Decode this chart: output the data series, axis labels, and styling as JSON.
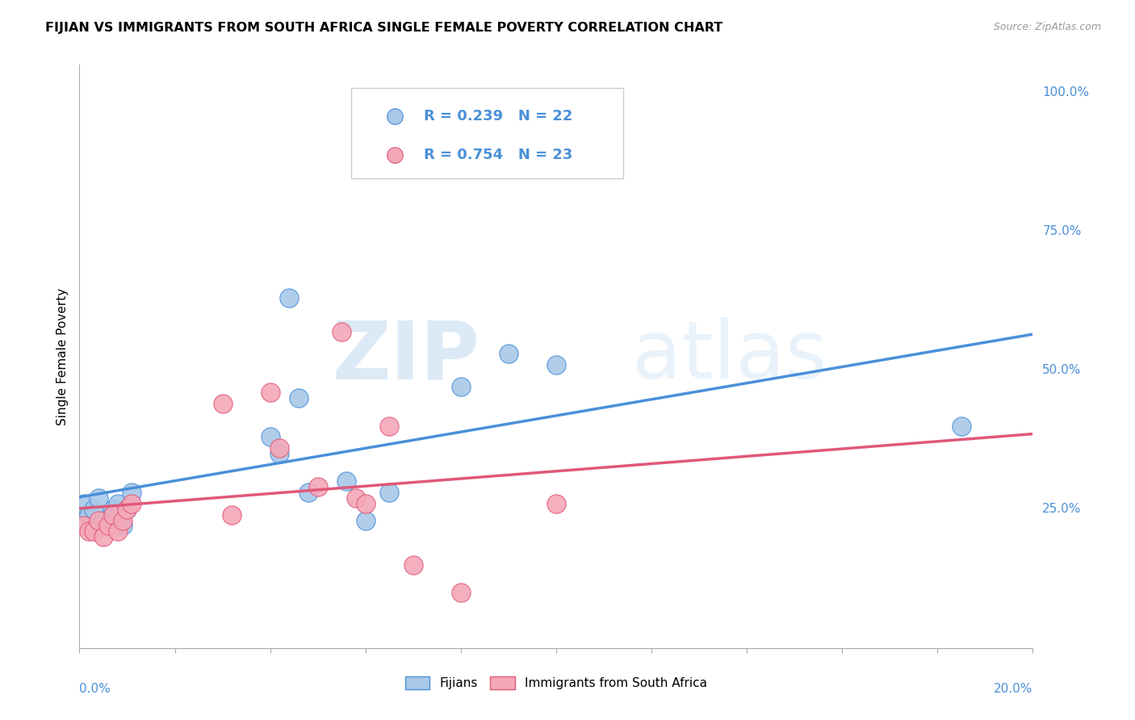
{
  "title": "FIJIAN VS IMMIGRANTS FROM SOUTH AFRICA SINGLE FEMALE POVERTY CORRELATION CHART",
  "source": "Source: ZipAtlas.com",
  "ylabel": "Single Female Poverty",
  "r_fijian": 0.239,
  "n_fijian": 22,
  "r_sa": 0.754,
  "n_sa": 23,
  "fijian_color": "#a8c8e8",
  "sa_color": "#f4a8b8",
  "fijian_line_color": "#4a90d9",
  "sa_line_color": "#e05878",
  "watermark_zip": "ZIP",
  "watermark_atlas": "atlas",
  "fijian_x": [
    0.001,
    0.002,
    0.003,
    0.004,
    0.005,
    0.007,
    0.008,
    0.009,
    0.01,
    0.011,
    0.04,
    0.042,
    0.044,
    0.046,
    0.048,
    0.056,
    0.06,
    0.065,
    0.08,
    0.09,
    0.1,
    0.185
  ],
  "fijian_y": [
    0.26,
    0.24,
    0.25,
    0.27,
    0.23,
    0.25,
    0.26,
    0.22,
    0.25,
    0.28,
    0.38,
    0.35,
    0.63,
    0.45,
    0.28,
    0.3,
    0.23,
    0.28,
    0.47,
    0.53,
    0.51,
    0.4
  ],
  "sa_x": [
    0.001,
    0.002,
    0.003,
    0.004,
    0.005,
    0.006,
    0.007,
    0.008,
    0.009,
    0.01,
    0.011,
    0.03,
    0.032,
    0.04,
    0.042,
    0.05,
    0.055,
    0.058,
    0.06,
    0.065,
    0.07,
    0.08,
    0.1
  ],
  "sa_y": [
    0.22,
    0.21,
    0.21,
    0.23,
    0.2,
    0.22,
    0.24,
    0.21,
    0.23,
    0.25,
    0.26,
    0.44,
    0.24,
    0.46,
    0.36,
    0.29,
    0.57,
    0.27,
    0.26,
    0.4,
    0.15,
    0.1,
    0.26
  ],
  "xlim": [
    0.0,
    0.2
  ],
  "ylim": [
    0.0,
    1.05
  ],
  "right_ytick_vals": [
    0.25,
    0.5,
    0.75,
    1.0
  ],
  "right_ytick_labels": [
    "25.0%",
    "50.0%",
    "75.0%",
    "100.0%"
  ]
}
